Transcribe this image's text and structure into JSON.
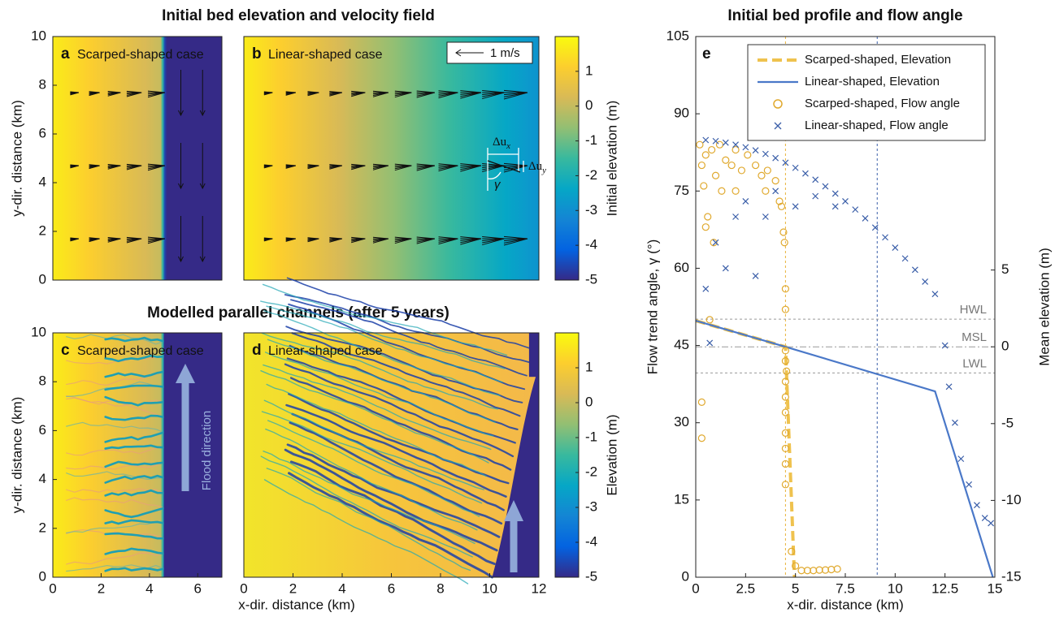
{
  "headings": [
    "Initial bed elevation and velocity field",
    "Modelled parallel channels (after 5 years)",
    "Initial bed profile and flow angle"
  ],
  "chart_data": [
    {
      "type": "heatmap",
      "panel": "a",
      "label": "Scarped-shaped case",
      "xlim": [
        0,
        7
      ],
      "ylim": [
        0,
        10
      ],
      "yticks": [
        0,
        2,
        4,
        6,
        8,
        10
      ],
      "ylabel": "y-dir. distance (km)"
    },
    {
      "type": "heatmap",
      "panel": "b",
      "label": "Linear-shaped case",
      "xlim": [
        0,
        12
      ],
      "ylim": [
        0,
        10
      ],
      "scale_label": "1 m/s",
      "dux": {
        "base": "Δu",
        "sub": "x"
      },
      "duy": {
        "base": "Δu",
        "sub": "y"
      },
      "angle_label": "γ",
      "clim": [
        -5,
        2
      ],
      "cticks": [
        -5,
        -4,
        -3,
        -2,
        -1,
        0,
        1
      ],
      "clabel": "Initial elevation (m)",
      "colormap": [
        "#352a87",
        "#0363e1",
        "#1485d4",
        "#06a7c6",
        "#38b99e",
        "#92bf73",
        "#d9ba56",
        "#fcce2e",
        "#f9fb0e"
      ]
    },
    {
      "type": "heatmap",
      "panel": "c",
      "label": "Scarped-shaped case",
      "xlim": [
        0,
        7
      ],
      "ylim": [
        0,
        10
      ],
      "xticks": [
        0,
        2,
        4,
        6
      ],
      "yticks": [
        0,
        2,
        4,
        6,
        8,
        10
      ],
      "ylabel": "y-dir. distance (km)",
      "arrow_label": "Flood direction"
    },
    {
      "type": "heatmap",
      "panel": "d",
      "label": "Linear-shaped case",
      "xlim": [
        0,
        12
      ],
      "ylim": [
        0,
        10
      ],
      "xticks": [
        0,
        2,
        4,
        6,
        8,
        10,
        12
      ],
      "xlabel": "x-dir. distance (km)",
      "clim": [
        -5,
        2
      ],
      "cticks": [
        -5,
        -4,
        -3,
        -2,
        -1,
        0,
        1
      ],
      "clabel": "Elevation (m)",
      "colormap": [
        "#352a87",
        "#0363e1",
        "#1485d4",
        "#06a7c6",
        "#38b99e",
        "#92bf73",
        "#d9ba56",
        "#fcce2e",
        "#f9fb0e"
      ]
    },
    {
      "type": "profile",
      "panel": "e",
      "xlabel": "x-dir. distance (km)",
      "ylabel": "Flow trend angle, γ (°)",
      "y2label": "Mean elevation (m)",
      "xlim": [
        0,
        15
      ],
      "xticks": [
        0,
        2.5,
        5,
        7.5,
        10,
        12.5,
        15
      ],
      "ylim": [
        0,
        105
      ],
      "yticks": [
        0,
        15,
        30,
        45,
        60,
        75,
        90,
        105
      ],
      "y2lim": [
        -15,
        20.2
      ],
      "y2ticks": [
        -15,
        -10,
        -5,
        0,
        5
      ],
      "legend": "upper right",
      "hlines": [
        {
          "label": "HWL",
          "value": 1.8,
          "style": "dashed"
        },
        {
          "label": "MSL",
          "value": 0,
          "style": "dashdot"
        },
        {
          "label": "LWL",
          "value": -1.7,
          "style": "dashed"
        }
      ],
      "vlines": [
        {
          "value": 4.5,
          "color": "#e8b33b"
        },
        {
          "value": 9.1,
          "color": "#3a5fa8"
        }
      ],
      "series": [
        {
          "name": "Scarped-shaped, Elevation",
          "mode": "line",
          "dash": true,
          "axis": "y2",
          "color": "#efc24e",
          "x": [
            0,
            4.5,
            4.95
          ],
          "values": [
            1.7,
            0,
            -15
          ]
        },
        {
          "name": "Linear-shaped, Elevation",
          "mode": "line",
          "dash": false,
          "axis": "y2",
          "color": "#4a78c8",
          "x": [
            0,
            4.5,
            12,
            14.9
          ],
          "values": [
            1.7,
            0,
            -2.9,
            -15
          ]
        },
        {
          "name": "Scarped-shaped, Flow angle",
          "mode": "scatter",
          "marker": "o",
          "color": "#e0a92e",
          "x": [
            0.2,
            0.3,
            0.4,
            0.5,
            0.6,
            0.8,
            1.0,
            1.2,
            1.5,
            1.8,
            2.0,
            2.3,
            2.6,
            3.0,
            3.3,
            3.6,
            4.0,
            4.3,
            4.4,
            4.45,
            4.5,
            4.5,
            4.5,
            4.5,
            4.5,
            4.5,
            4.5,
            4.5,
            4.5,
            4.5,
            4.5,
            4.55,
            4.8,
            5.0,
            5.3,
            5.6,
            5.9,
            6.2,
            6.5,
            6.8,
            7.1,
            0.3,
            0.3,
            0.5,
            0.7,
            0.9,
            1.3,
            2.0,
            3.5,
            4.2
          ],
          "values": [
            84,
            80,
            76,
            82,
            70,
            83,
            78,
            84,
            81,
            80,
            83,
            79,
            82,
            80,
            78,
            79,
            77,
            72,
            67,
            65,
            56,
            52,
            44,
            42,
            38,
            35,
            32,
            28,
            25,
            22,
            18,
            40,
            5,
            2.2,
            1.3,
            1.3,
            1.3,
            1.4,
            1.4,
            1.5,
            1.6,
            34,
            27,
            68,
            50,
            65,
            75,
            75,
            75,
            73
          ]
        },
        {
          "name": "Linear-shaped, Flow angle",
          "mode": "scatter",
          "marker": "x",
          "color": "#3a5ea8",
          "x": [
            0.5,
            1,
            1.5,
            2,
            2.5,
            3,
            3.5,
            4,
            4.5,
            5,
            5.5,
            6,
            6.5,
            7,
            7.5,
            8,
            8.5,
            9,
            9.5,
            10,
            10.5,
            11,
            11.5,
            12,
            12.5,
            12.7,
            13,
            13.3,
            13.7,
            14.1,
            14.5,
            14.8,
            0.5,
            0.7,
            1,
            1.5,
            2,
            2.5,
            3,
            3.5,
            4,
            5,
            6,
            7
          ],
          "values": [
            84.9,
            84.7,
            84.4,
            84.0,
            83.5,
            82.9,
            82.2,
            81.4,
            80.5,
            79.5,
            78.4,
            77.2,
            75.9,
            74.5,
            73.0,
            71.4,
            69.7,
            67.9,
            66.0,
            64.0,
            61.9,
            59.7,
            57.4,
            55.0,
            45,
            37,
            30,
            23,
            18,
            14,
            11.5,
            10.5,
            56,
            45.5,
            65,
            60,
            70,
            73,
            58.5,
            70,
            75,
            72,
            74,
            72
          ]
        }
      ]
    }
  ]
}
